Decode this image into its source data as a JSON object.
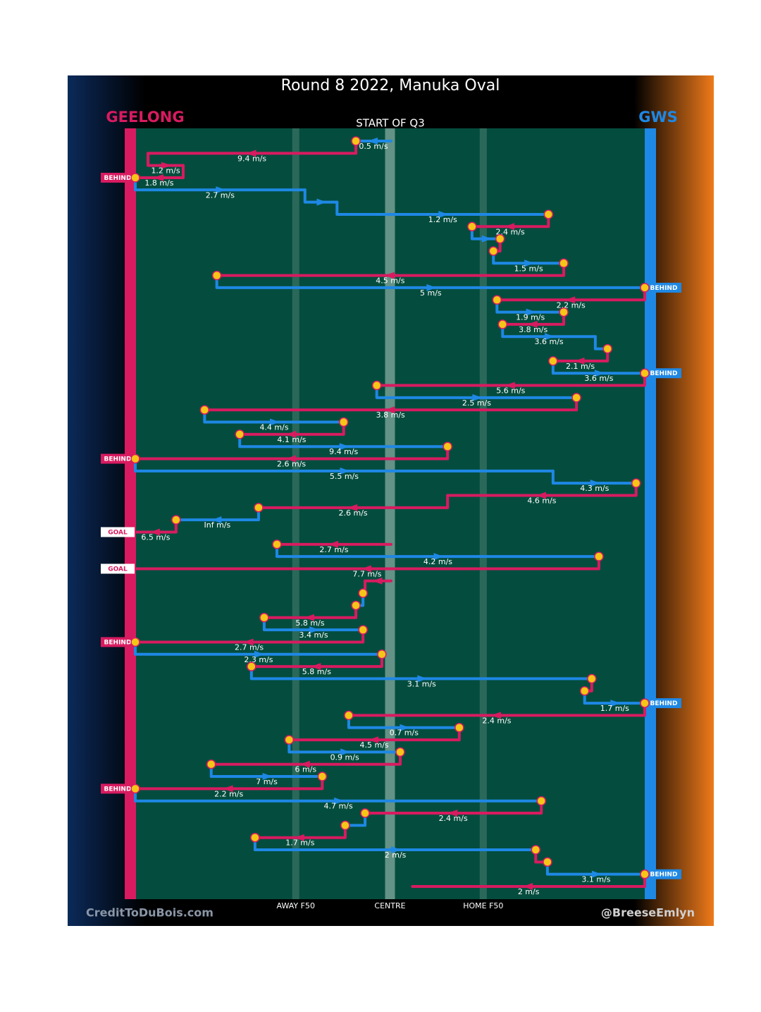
{
  "chart_data": {
    "type": "chain",
    "title": "Round 8 2022, Manuka Oval",
    "subtitle": "START OF Q3",
    "teams": [
      {
        "name": "GEELONG",
        "color": "#d81b60"
      },
      {
        "name": "GWS",
        "color": "#1e88e5"
      }
    ],
    "zones": [
      {
        "label": "AWAY F50",
        "x": 31.5
      },
      {
        "label": "CENTRE",
        "x": 50
      },
      {
        "label": "HOME F50",
        "x": 68.3
      }
    ],
    "xlim": [
      0,
      100
    ],
    "credit_left": "CreditToDuBois.com",
    "credit_right": "@BreeseEmlyn",
    "segments": [
      {
        "team": 1,
        "from": 50.2,
        "to": 43.3,
        "label": "0.5 m/s"
      },
      {
        "team": 0,
        "from": 43.3,
        "to": 2.5,
        "label": "9.4 m/s"
      },
      {
        "team": 0,
        "from": 2.5,
        "to": 9.4,
        "label": "1.2 m/s"
      },
      {
        "team": 0,
        "from": 9.4,
        "to": 0,
        "label": "1.8 m/s",
        "result": "BEHIND"
      },
      {
        "team": 1,
        "from": 0,
        "to": 33.3,
        "label": "2.7 m/s"
      },
      {
        "team": 1,
        "from": 33.3,
        "to": 39.6
      },
      {
        "team": 1,
        "from": 39.6,
        "to": 81.1,
        "label": "1.2 m/s"
      },
      {
        "team": 0,
        "from": 81.1,
        "to": 66.1,
        "label": "2.4 m/s"
      },
      {
        "team": 1,
        "from": 66.1,
        "to": 71.6
      },
      {
        "team": 0,
        "from": 71.6,
        "to": 70.3
      },
      {
        "team": 1,
        "from": 70.3,
        "to": 84.1,
        "label": "1.5 m/s"
      },
      {
        "team": 0,
        "from": 84.1,
        "to": 16.0,
        "label": "4.5 m/s"
      },
      {
        "team": 1,
        "from": 16.0,
        "to": 100,
        "label": "5 m/s",
        "result": "BEHIND"
      },
      {
        "team": 0,
        "from": 100,
        "to": 71.0,
        "label": "2.2 m/s"
      },
      {
        "team": 1,
        "from": 71.0,
        "to": 84.1,
        "label": "1.9 m/s"
      },
      {
        "team": 0,
        "from": 84.1,
        "to": 72.1,
        "label": "3.8 m/s"
      },
      {
        "team": 1,
        "from": 72.1,
        "to": 90.3,
        "label": "3.6 m/s"
      },
      {
        "team": 1,
        "from": 90.3,
        "to": 92.7
      },
      {
        "team": 0,
        "from": 92.7,
        "to": 82.0,
        "label": "2.1 m/s"
      },
      {
        "team": 1,
        "from": 82.0,
        "to": 100,
        "label": "3.6 m/s",
        "result": "BEHIND"
      },
      {
        "team": 0,
        "from": 100,
        "to": 47.4,
        "label": "5.6 m/s"
      },
      {
        "team": 1,
        "from": 47.4,
        "to": 86.6,
        "label": "2.5 m/s"
      },
      {
        "team": 0,
        "from": 86.6,
        "to": 13.6,
        "label": "3.8 m/s"
      },
      {
        "team": 1,
        "from": 13.6,
        "to": 40.9,
        "label": "4.4 m/s"
      },
      {
        "team": 0,
        "from": 40.9,
        "to": 20.5,
        "label": "4.1 m/s"
      },
      {
        "team": 1,
        "from": 20.5,
        "to": 61.3,
        "label": "9.4 m/s"
      },
      {
        "team": 0,
        "from": 61.3,
        "to": 0,
        "label": "2.6 m/s",
        "result": "BEHIND"
      },
      {
        "team": 1,
        "from": 0,
        "to": 82.0,
        "label": "5.5 m/s"
      },
      {
        "team": 1,
        "from": 82.0,
        "to": 98.3,
        "label": "4.3 m/s"
      },
      {
        "team": 0,
        "from": 98.3,
        "to": 61.3,
        "label": "4.6 m/s"
      },
      {
        "team": 0,
        "from": 61.3,
        "to": 24.2,
        "label": "2.6 m/s"
      },
      {
        "team": 1,
        "from": 24.2,
        "to": 8.0,
        "label": "Inf m/s"
      },
      {
        "team": 0,
        "from": 8.0,
        "to": 0,
        "label": "6.5 m/s",
        "result": "GOAL"
      },
      {
        "team": 0,
        "from": 50.2,
        "to": 27.8,
        "label": "2.7 m/s"
      },
      {
        "team": 1,
        "from": 27.8,
        "to": 91.0,
        "label": "4.2 m/s"
      },
      {
        "team": 0,
        "from": 91.0,
        "to": 0,
        "label": "7.7 m/s",
        "result": "GOAL"
      },
      {
        "team": 0,
        "from": 50.2,
        "to": 45.1
      },
      {
        "team": 0,
        "from": 45.1,
        "to": 44.7
      },
      {
        "team": 1,
        "from": 44.7,
        "to": 43.3
      },
      {
        "team": 0,
        "from": 43.3,
        "to": 25.3,
        "label": "5.8 m/s"
      },
      {
        "team": 1,
        "from": 25.3,
        "to": 44.7,
        "label": "3.4 m/s"
      },
      {
        "team": 0,
        "from": 44.7,
        "to": 0,
        "label": "2.7 m/s",
        "result": "BEHIND"
      },
      {
        "team": 1,
        "from": 0,
        "to": 48.4,
        "label": "2.3 m/s"
      },
      {
        "team": 0,
        "from": 48.4,
        "to": 22.8,
        "label": "5.8 m/s"
      },
      {
        "team": 1,
        "from": 22.8,
        "to": 89.6,
        "label": "3.1 m/s"
      },
      {
        "team": 0,
        "from": 89.6,
        "to": 88.2
      },
      {
        "team": 1,
        "from": 88.2,
        "to": 100,
        "label": "1.7 m/s",
        "result": "BEHIND"
      },
      {
        "team": 0,
        "from": 100,
        "to": 41.9,
        "label": "2.4 m/s"
      },
      {
        "team": 1,
        "from": 41.9,
        "to": 63.6,
        "label": "0.7 m/s"
      },
      {
        "team": 0,
        "from": 63.6,
        "to": 30.2,
        "label": "4.5 m/s"
      },
      {
        "team": 1,
        "from": 30.2,
        "to": 52.0,
        "label": "0.9 m/s"
      },
      {
        "team": 0,
        "from": 52.0,
        "to": 14.9,
        "label": "6 m/s"
      },
      {
        "team": 1,
        "from": 14.9,
        "to": 36.7,
        "label": "7 m/s"
      },
      {
        "team": 0,
        "from": 36.7,
        "to": 0,
        "label": "2.2 m/s",
        "result": "BEHIND"
      },
      {
        "team": 1,
        "from": 0,
        "to": 79.7,
        "label": "4.7 m/s"
      },
      {
        "team": 0,
        "from": 79.7,
        "to": 45.1,
        "label": "2.4 m/s"
      },
      {
        "team": 1,
        "from": 45.1,
        "to": 41.2
      },
      {
        "team": 0,
        "from": 41.2,
        "to": 23.5,
        "label": "1.7 m/s"
      },
      {
        "team": 1,
        "from": 23.5,
        "to": 78.6,
        "label": "2 m/s"
      },
      {
        "team": 0,
        "from": 78.6,
        "to": 80.9
      },
      {
        "team": 1,
        "from": 80.9,
        "to": 100,
        "label": "3.1 m/s",
        "result": "BEHIND"
      },
      {
        "team": 0,
        "from": 100,
        "to": 54.4,
        "label": "2 m/s"
      }
    ]
  }
}
